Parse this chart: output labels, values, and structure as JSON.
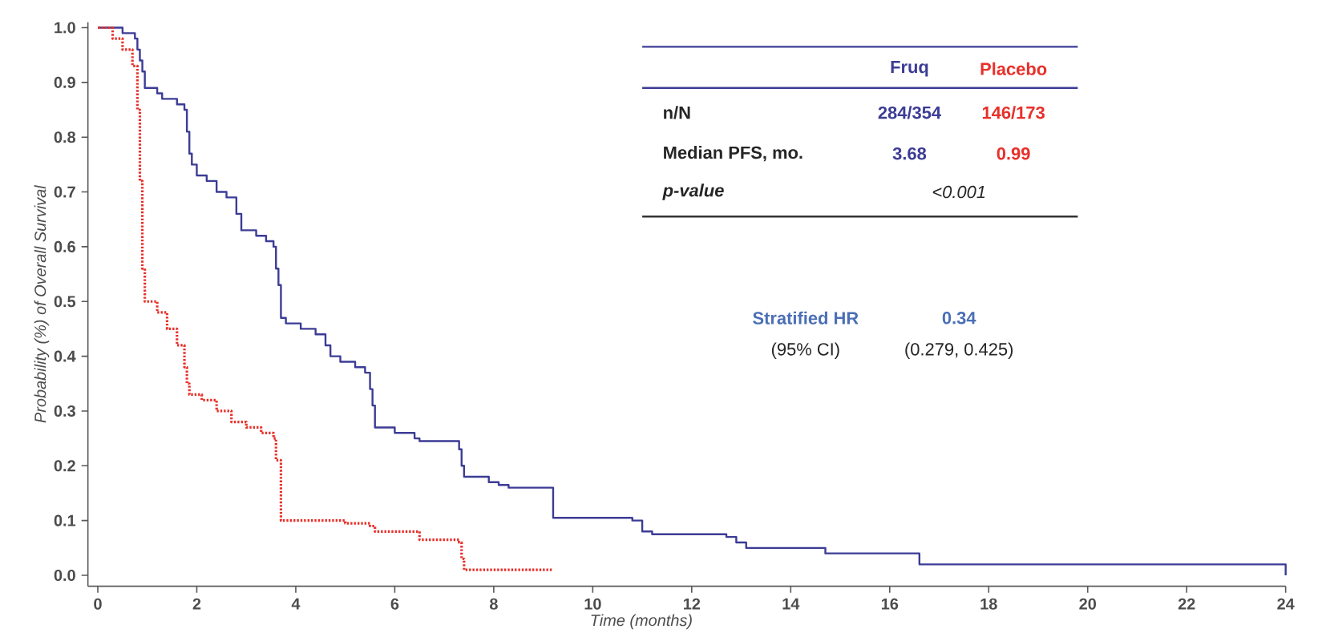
{
  "chart_data": {
    "type": "step",
    "xlabel": "Time (months)",
    "ylabel": "Probability (%) of Overall Survival",
    "xlim": [
      -0.2,
      24
    ],
    "ylim": [
      -0.02,
      1.01
    ],
    "xticks": [
      0,
      2,
      4,
      6,
      8,
      10,
      12,
      14,
      16,
      18,
      20,
      22,
      24
    ],
    "yticks": [
      {
        "value": 0,
        "label": "0.0"
      },
      0.1,
      0.2,
      0.3,
      0.4,
      0.5,
      0.6,
      0.7,
      0.8,
      0.9,
      {
        "value": 1,
        "label": "1.0"
      }
    ],
    "grid": false,
    "legend": false,
    "series": [
      {
        "name": "Fruq",
        "color": "#3c3c96",
        "line_style": "solid",
        "x": [
          0,
          0.5,
          0.75,
          0.8,
          0.85,
          0.9,
          0.95,
          1.2,
          1.3,
          1.6,
          1.75,
          1.8,
          1.85,
          1.9,
          2.0,
          2.2,
          2.4,
          2.6,
          2.8,
          2.9,
          3.2,
          3.4,
          3.55,
          3.6,
          3.65,
          3.7,
          3.8,
          4.1,
          4.4,
          4.6,
          4.7,
          4.9,
          5.2,
          5.4,
          5.5,
          5.55,
          5.6,
          6.0,
          6.4,
          6.5,
          7.3,
          7.35,
          7.4,
          7.9,
          8.1,
          8.3,
          9.2,
          10.8,
          11.0,
          11.2,
          12.7,
          12.9,
          13.1,
          14.7,
          16.6,
          24,
          24
        ],
        "values": [
          1.0,
          0.99,
          0.98,
          0.96,
          0.94,
          0.92,
          0.89,
          0.88,
          0.87,
          0.86,
          0.85,
          0.81,
          0.77,
          0.75,
          0.73,
          0.72,
          0.7,
          0.69,
          0.66,
          0.63,
          0.62,
          0.61,
          0.6,
          0.56,
          0.53,
          0.47,
          0.46,
          0.45,
          0.44,
          0.42,
          0.4,
          0.39,
          0.38,
          0.37,
          0.34,
          0.31,
          0.27,
          0.26,
          0.25,
          0.245,
          0.23,
          0.2,
          0.18,
          0.17,
          0.165,
          0.16,
          0.105,
          0.1,
          0.08,
          0.075,
          0.07,
          0.06,
          0.05,
          0.04,
          0.02,
          0.02,
          0.0
        ]
      },
      {
        "name": "Placebo",
        "color": "#e8302a",
        "line_style": "dotted",
        "x": [
          0,
          0.3,
          0.5,
          0.7,
          0.8,
          0.85,
          0.9,
          0.95,
          1.2,
          1.4,
          1.6,
          1.75,
          1.8,
          1.85,
          2.1,
          2.4,
          2.7,
          3.0,
          3.3,
          3.55,
          3.6,
          3.7,
          5.0,
          5.5,
          5.6,
          6.5,
          7.3,
          7.35,
          7.4,
          9.2
        ],
        "values": [
          1.0,
          0.98,
          0.96,
          0.93,
          0.85,
          0.72,
          0.56,
          0.5,
          0.48,
          0.45,
          0.42,
          0.38,
          0.35,
          0.33,
          0.32,
          0.3,
          0.28,
          0.27,
          0.26,
          0.25,
          0.21,
          0.1,
          0.095,
          0.09,
          0.08,
          0.065,
          0.06,
          0.03,
          0.01,
          0.01
        ]
      }
    ],
    "annotations": [
      "n/N",
      "284/354",
      "146/173",
      "Median PFS, mo.",
      "3.68",
      "0.99",
      "p-value",
      "<0.001",
      "Stratified HR",
      "0.34",
      "(95% CI)",
      "(0.279, 0.425)"
    ]
  }
}
